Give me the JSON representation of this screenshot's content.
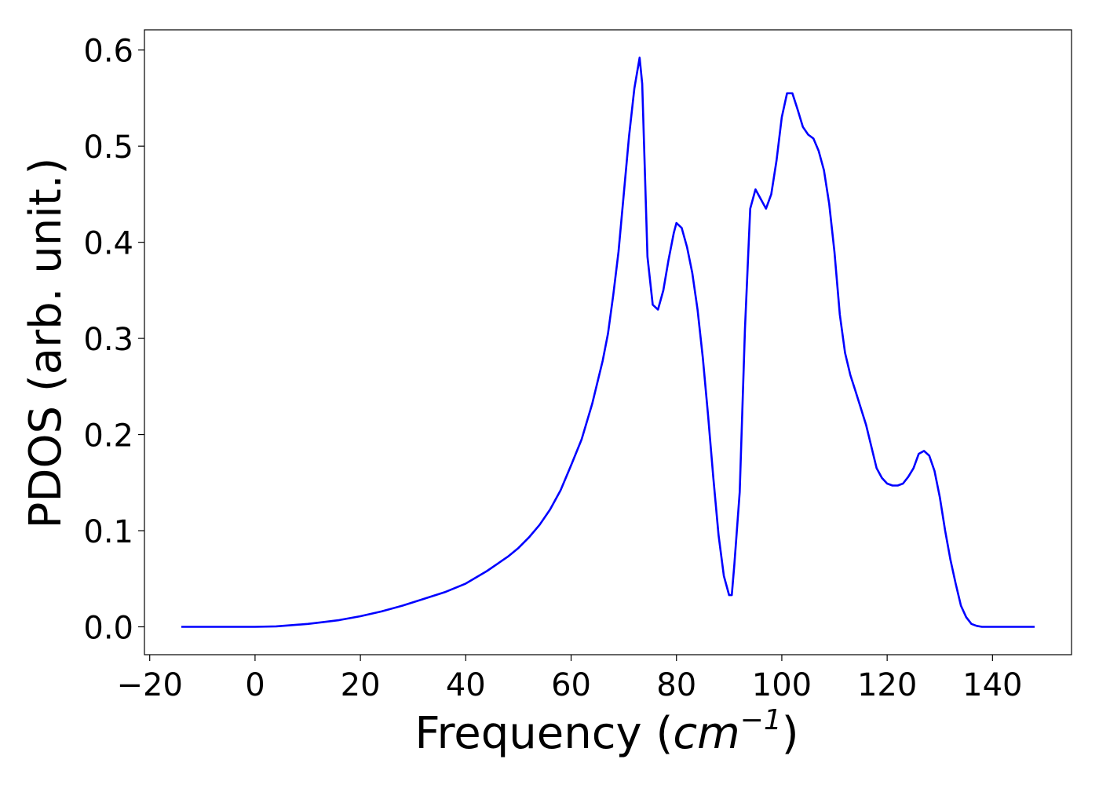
{
  "chart_data": {
    "type": "line",
    "title": "",
    "xlabel": {
      "prefix": "Frequency (",
      "unit": "cm",
      "exponent": "−1",
      "suffix": ")"
    },
    "ylabel": "PDOS (arb. unit.)",
    "xlim": [
      -21,
      155
    ],
    "ylim": [
      -0.029,
      0.621
    ],
    "xticks": [
      -20,
      0,
      20,
      40,
      60,
      80,
      100,
      120,
      140
    ],
    "xtick_labels": [
      "−20",
      "0",
      "20",
      "40",
      "60",
      "80",
      "100",
      "120",
      "140"
    ],
    "yticks": [
      0.0,
      0.1,
      0.2,
      0.3,
      0.4,
      0.5,
      0.6
    ],
    "ytick_labels": [
      "0.0",
      "0.1",
      "0.2",
      "0.3",
      "0.4",
      "0.5",
      "0.6"
    ],
    "grid": false,
    "legend": "none",
    "series": [
      {
        "color": "#0000ff",
        "x": [
          -14,
          0,
          4,
          10,
          13,
          16,
          20,
          24,
          28,
          32,
          36,
          40,
          44,
          48,
          50,
          52,
          54,
          56,
          58,
          60,
          62,
          64,
          66,
          67,
          68,
          69,
          70,
          71,
          72,
          73,
          73.5,
          74.5,
          75.5,
          76.5,
          77.5,
          78.5,
          79.5,
          80,
          81,
          82,
          83,
          84,
          85,
          86,
          87,
          88,
          89,
          90,
          90.5,
          91,
          92,
          93,
          94,
          95,
          96,
          97,
          98,
          99,
          100,
          101,
          102,
          103,
          104,
          105,
          106,
          107,
          108,
          109,
          110,
          111,
          112,
          113,
          114,
          116,
          118,
          119,
          120,
          121,
          122,
          123,
          124,
          125,
          126,
          127,
          128,
          129,
          130,
          131,
          132,
          133,
          134,
          135,
          136,
          137,
          138,
          140,
          148
        ],
        "y": [
          0.0,
          0.0,
          0.0005,
          0.003,
          0.005,
          0.007,
          0.011,
          0.016,
          0.022,
          0.029,
          0.036,
          0.045,
          0.058,
          0.073,
          0.082,
          0.093,
          0.106,
          0.122,
          0.142,
          0.168,
          0.195,
          0.232,
          0.277,
          0.305,
          0.345,
          0.39,
          0.45,
          0.51,
          0.56,
          0.592,
          0.565,
          0.385,
          0.335,
          0.33,
          0.35,
          0.382,
          0.41,
          0.42,
          0.415,
          0.395,
          0.368,
          0.33,
          0.28,
          0.22,
          0.155,
          0.095,
          0.053,
          0.033,
          0.033,
          0.065,
          0.14,
          0.31,
          0.435,
          0.455,
          0.445,
          0.435,
          0.45,
          0.485,
          0.53,
          0.555,
          0.555,
          0.538,
          0.52,
          0.512,
          0.508,
          0.495,
          0.475,
          0.44,
          0.39,
          0.325,
          0.285,
          0.262,
          0.245,
          0.21,
          0.165,
          0.155,
          0.149,
          0.147,
          0.147,
          0.149,
          0.156,
          0.165,
          0.18,
          0.183,
          0.178,
          0.162,
          0.135,
          0.1,
          0.07,
          0.045,
          0.022,
          0.01,
          0.003,
          0.001,
          0.0,
          0.0,
          0.0
        ]
      }
    ]
  }
}
